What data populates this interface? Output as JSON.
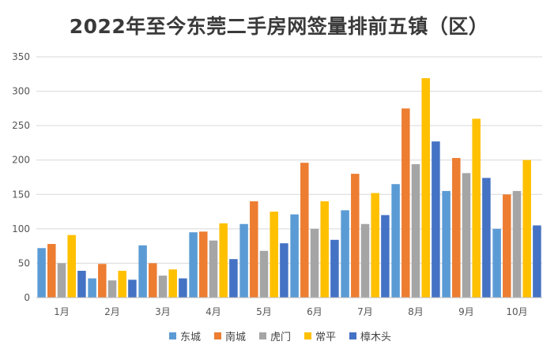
{
  "chart_data": {
    "type": "bar",
    "title": "2022年至今东莞二手房网签量排前五镇（区）",
    "categories": [
      "1月",
      "2月",
      "3月",
      "4月",
      "5月",
      "6月",
      "7月",
      "8月",
      "9月",
      "10月"
    ],
    "series": [
      {
        "name": "东城",
        "color": "#5b9bd5",
        "values": [
          72,
          28,
          76,
          95,
          107,
          121,
          127,
          165,
          155,
          100
        ]
      },
      {
        "name": "南城",
        "color": "#ed7d31",
        "values": [
          78,
          49,
          50,
          96,
          140,
          196,
          180,
          275,
          203,
          150
        ]
      },
      {
        "name": "虎门",
        "color": "#a5a5a5",
        "values": [
          50,
          25,
          32,
          83,
          68,
          100,
          107,
          194,
          181,
          155
        ]
      },
      {
        "name": "常平",
        "color": "#ffc000",
        "values": [
          91,
          39,
          41,
          108,
          125,
          140,
          152,
          319,
          260,
          200
        ]
      },
      {
        "name": "樟木头",
        "color": "#4472c4",
        "values": [
          39,
          26,
          28,
          56,
          79,
          84,
          120,
          227,
          174,
          105
        ]
      }
    ],
    "ylim": [
      0,
      350
    ],
    "yticks": [
      0,
      50,
      100,
      150,
      200,
      250,
      300,
      350
    ],
    "grid": true,
    "legend_position": "bottom"
  }
}
